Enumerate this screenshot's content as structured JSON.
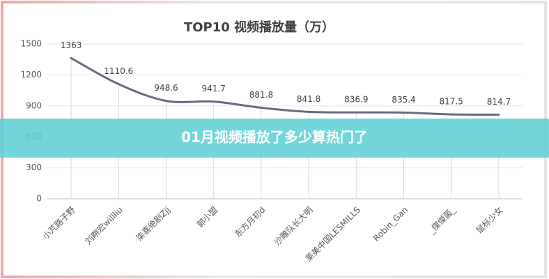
{
  "chart_data": {
    "type": "line",
    "title": "TOP10 视频播放量（万）",
    "categories": [
      "小芃路子野",
      "刘畊宏willliu",
      "柒喜绝剧Zjj",
      "郭小盟",
      "东方月初d",
      "沙雕队长大明",
      "莱美中国LESMILLS",
      "Robin_Gan",
      "_傑傑菌_",
      "鼠标少女"
    ],
    "values": [
      1363,
      1110.6,
      948.6,
      941.7,
      881.8,
      841.8,
      836.9,
      835.4,
      817.5,
      814.7
    ],
    "color": "#6b6880",
    "ylim": [
      0,
      1500
    ],
    "yticks": [
      0,
      300,
      600,
      900,
      1200,
      1500
    ],
    "grid": true,
    "data_labels": true
  },
  "banner": {
    "text": "01月视频播放了多少算热门了"
  }
}
